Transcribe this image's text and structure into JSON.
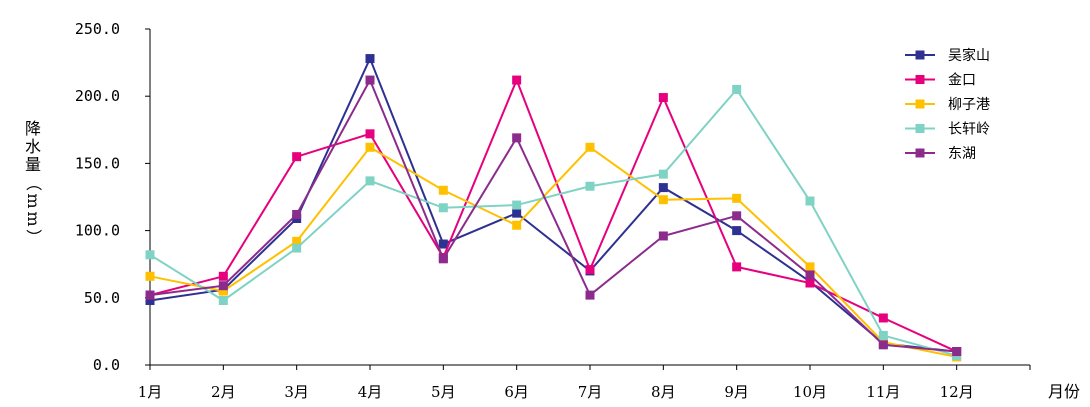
{
  "chart_data": {
    "type": "line",
    "title": "",
    "xlabel": "月份",
    "ylabel": "降水量（mm）",
    "categories": [
      "1月",
      "2月",
      "3月",
      "4月",
      "5月",
      "6月",
      "7月",
      "8月",
      "9月",
      "10月",
      "11月",
      "12月"
    ],
    "ylim": [
      0,
      250
    ],
    "yticks": [
      "0.0",
      "50.0",
      "100.0",
      "150.0",
      "200.0",
      "250.0"
    ],
    "grid": false,
    "legend_position": "top-right",
    "series": [
      {
        "name": "吴家山",
        "color": "#2e3192",
        "values": [
          48,
          56,
          109,
          228,
          90,
          113,
          70,
          132,
          100,
          62,
          16,
          10
        ]
      },
      {
        "name": "金口",
        "color": "#e6007e",
        "values": [
          52,
          66,
          155,
          172,
          80,
          212,
          71,
          199,
          73,
          61,
          35,
          10
        ]
      },
      {
        "name": "柳子港",
        "color": "#ffc000",
        "values": [
          66,
          55,
          92,
          162,
          130,
          104,
          162,
          123,
          124,
          73,
          17,
          6
        ]
      },
      {
        "name": "长轩岭",
        "color": "#7fd3c4",
        "values": [
          82,
          48,
          87,
          137,
          117,
          119,
          133,
          142,
          205,
          122,
          22,
          7
        ]
      },
      {
        "name": "东湖",
        "color": "#8b2c8c",
        "values": [
          52,
          59,
          112,
          212,
          79,
          169,
          52,
          96,
          111,
          67,
          15,
          10
        ]
      }
    ]
  }
}
